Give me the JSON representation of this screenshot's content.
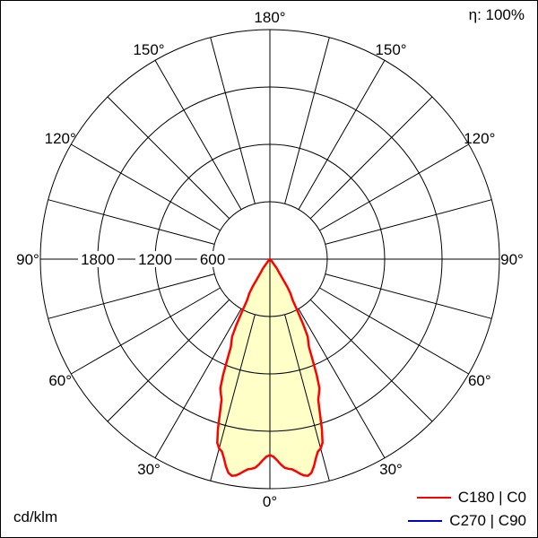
{
  "meta": {
    "efficiency_label": "η: 100%",
    "unit_label": "cd/klm"
  },
  "legend": [
    {
      "label": "C180 | C0",
      "color": "#ff0000"
    },
    {
      "label": "C270 | C90",
      "color": "#0000cc"
    }
  ],
  "chart_data": {
    "type": "polar",
    "description": "Luminous intensity distribution curve (photometric polar diagram)",
    "unit": "cd/klm",
    "efficiency_percent": 100,
    "axis_max": 2400,
    "rings": [
      600,
      1200,
      1800,
      2400
    ],
    "ring_label_values": [
      600,
      1200,
      1800
    ],
    "angle_step_deg": 15,
    "grid_color": "#000000",
    "angle_labels": [
      {
        "a": 180,
        "t": "180°"
      },
      {
        "a": 150,
        "t": "150°"
      },
      {
        "a": -150,
        "t": "150°"
      },
      {
        "a": 120,
        "t": "120°"
      },
      {
        "a": -120,
        "t": "120°"
      },
      {
        "a": 90,
        "t": "90°"
      },
      {
        "a": -90,
        "t": "90°"
      },
      {
        "a": 60,
        "t": "60°"
      },
      {
        "a": -60,
        "t": "60°"
      },
      {
        "a": 30,
        "t": "30°"
      },
      {
        "a": -30,
        "t": "30°"
      },
      {
        "a": 0,
        "t": "0°"
      }
    ],
    "series": [
      {
        "name": "C180 | C0",
        "color": "#ff0000",
        "fill": "#ffffc8",
        "symmetric": true,
        "gamma_deg": [
          0,
          5,
          10,
          15,
          20,
          25,
          30,
          35,
          40,
          45,
          60,
          75,
          90
        ],
        "values": [
          2050,
          2200,
          2300,
          2050,
          1500,
          950,
          450,
          150,
          40,
          0,
          0,
          0,
          0
        ]
      },
      {
        "name": "C270 | C90",
        "color": "#0000cc",
        "values": null
      }
    ]
  }
}
